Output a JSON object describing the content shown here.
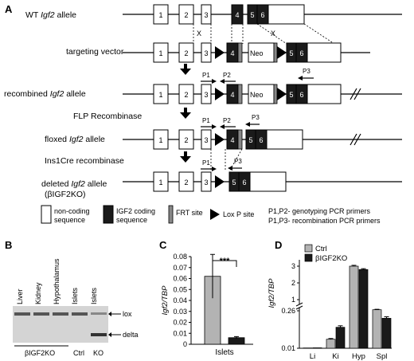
{
  "panel_a": {
    "label": "A",
    "rows": [
      {
        "label": "WT Igf2 allele",
        "label_pre": "WT ",
        "label_italic": "Igf2",
        "label_post": " allele"
      },
      {
        "label": "targeting vector"
      },
      {
        "label": "recombined Igf2 allele",
        "label_pre": "recombined ",
        "label_italic": "Igf2",
        "label_post": " allele"
      },
      {
        "label": "floxed Igf2 allele",
        "label_pre": "floxed ",
        "label_italic": "Igf2",
        "label_post": " allele"
      },
      {
        "label": "deleted Igf2 allele",
        "label_pre": "deleted ",
        "label_italic": "Igf2",
        "label_post": " allele",
        "label2": "(βIGF2KO)"
      }
    ],
    "steps": {
      "flp": "FLP  Recombinase",
      "cre": "Ins1Cre recombinase"
    },
    "exons": [
      "1",
      "2",
      "3",
      "4",
      "5",
      "6"
    ],
    "neo": "Neo",
    "cross": "X",
    "primers": {
      "p1": "P1",
      "p2": "P2",
      "p3": "P3"
    },
    "legend": {
      "noncoding": "non-coding",
      "noncoding2": "sequence",
      "coding": "IGF2 coding",
      "coding2": "sequence",
      "frt": "FRT site",
      "loxp": "Lox P site",
      "primer_note1": "P1,P2- genotyping PCR primers",
      "primer_note2": "P1,P3- recombination PCR primers"
    }
  },
  "panel_b": {
    "label": "B",
    "lanes": [
      "Liver",
      "Kidney",
      "Hypothalamus",
      "Islets",
      "Islets"
    ],
    "arrows": {
      "lox": "lox",
      "delta": "delta"
    },
    "groups": {
      "ko_group": "βIGF2KO",
      "ctrl": "Ctrl",
      "ko": "KO"
    }
  },
  "chart_data": [
    {
      "id": "C",
      "type": "bar",
      "categories": [
        "Islets"
      ],
      "series": [
        {
          "values": [
            0.062
          ],
          "error": [
            0.02
          ],
          "color": "#b3b3b3"
        },
        {
          "values": [
            0.006
          ],
          "error": [
            0.001
          ],
          "color": "#1a1a1a"
        }
      ],
      "ylabel": "Igf2/TBP",
      "ylim": [
        0,
        0.08
      ],
      "yticks": [
        "0",
        "0.01",
        "0.02",
        "0.03",
        "0.04",
        "0.05",
        "0.06",
        "0.07",
        "0.08"
      ],
      "xlabel": "Islets",
      "annotation": "***"
    },
    {
      "id": "D",
      "type": "bar",
      "categories": [
        "Li",
        "Ki",
        "Hyp",
        "Spl"
      ],
      "series": [
        {
          "name": "Ctrl",
          "values": [
            0.012,
            0.07,
            3.0,
            0.33
          ],
          "error": [
            0.0,
            0.005,
            0.05,
            0.03
          ],
          "color": "#b3b3b3"
        },
        {
          "name": "βIGF2KO",
          "values": [
            0.013,
            0.15,
            2.8,
            0.21
          ],
          "error": [
            0.0,
            0.01,
            0.05,
            0.01
          ],
          "color": "#1a1a1a"
        }
      ],
      "ylabel": "Igf2/TBP",
      "axis_break": true,
      "yticks": [
        "0.01",
        "0.26",
        "1",
        "2",
        "3"
      ],
      "legend": "top-left"
    }
  ]
}
